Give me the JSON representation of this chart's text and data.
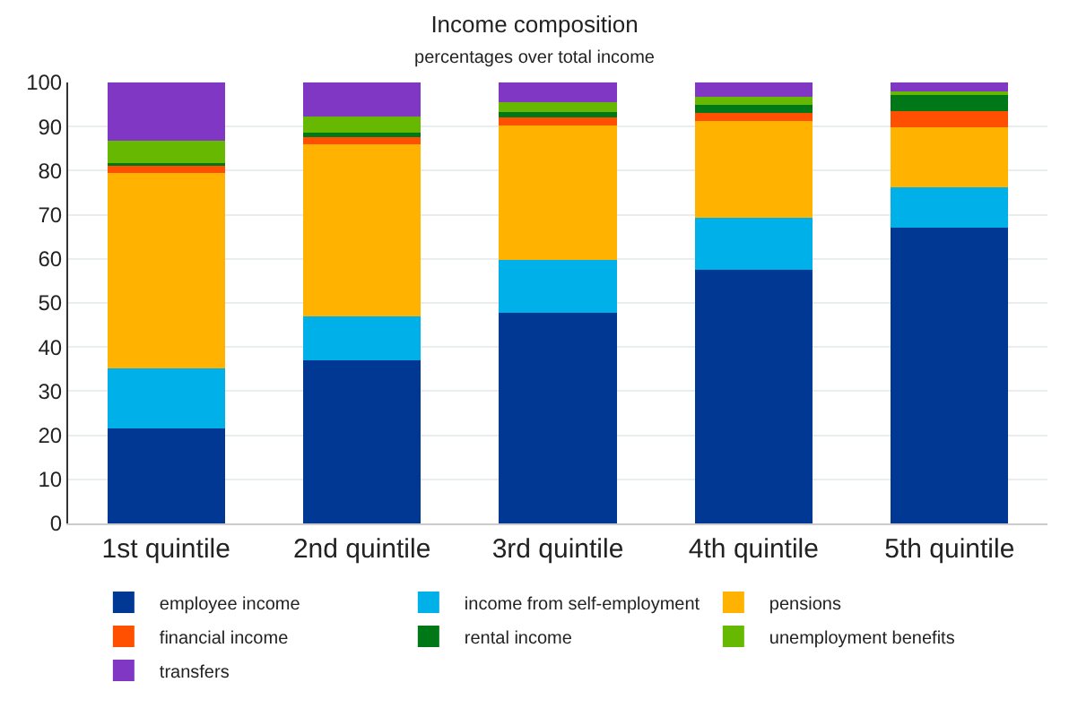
{
  "chart_data": {
    "type": "bar",
    "title": "Income composition",
    "subtitle": "percentages over total income",
    "stacked": true,
    "categories": [
      "1st quintile",
      "2nd quintile",
      "3rd quintile",
      "4th quintile",
      "5th quintile"
    ],
    "series": [
      {
        "name": "employee income",
        "color": "#003893",
        "values": [
          21.6,
          37.0,
          47.7,
          57.6,
          67.1
        ]
      },
      {
        "name": "income from self-employment",
        "color": "#00b0e8",
        "values": [
          13.5,
          10.0,
          12.1,
          11.7,
          9.1
        ]
      },
      {
        "name": "pensions",
        "color": "#ffb200",
        "values": [
          44.4,
          39.0,
          30.4,
          21.9,
          13.6
        ]
      },
      {
        "name": "financial income",
        "color": "#ff4f00",
        "values": [
          1.5,
          1.6,
          1.8,
          1.8,
          3.7
        ]
      },
      {
        "name": "rental income",
        "color": "#007818",
        "values": [
          0.7,
          1.1,
          1.2,
          2.0,
          3.7
        ]
      },
      {
        "name": "unemployment benefits",
        "color": "#66b800",
        "values": [
          5.1,
          3.6,
          2.4,
          1.7,
          0.7
        ]
      },
      {
        "name": "transfers",
        "color": "#8038c4",
        "values": [
          13.2,
          7.7,
          4.4,
          3.3,
          2.1
        ]
      }
    ],
    "ylim": [
      0,
      100
    ],
    "yticks": [
      0,
      10,
      20,
      30,
      40,
      50,
      60,
      70,
      80,
      90,
      100
    ],
    "grid": "y",
    "legend": "bottom"
  }
}
